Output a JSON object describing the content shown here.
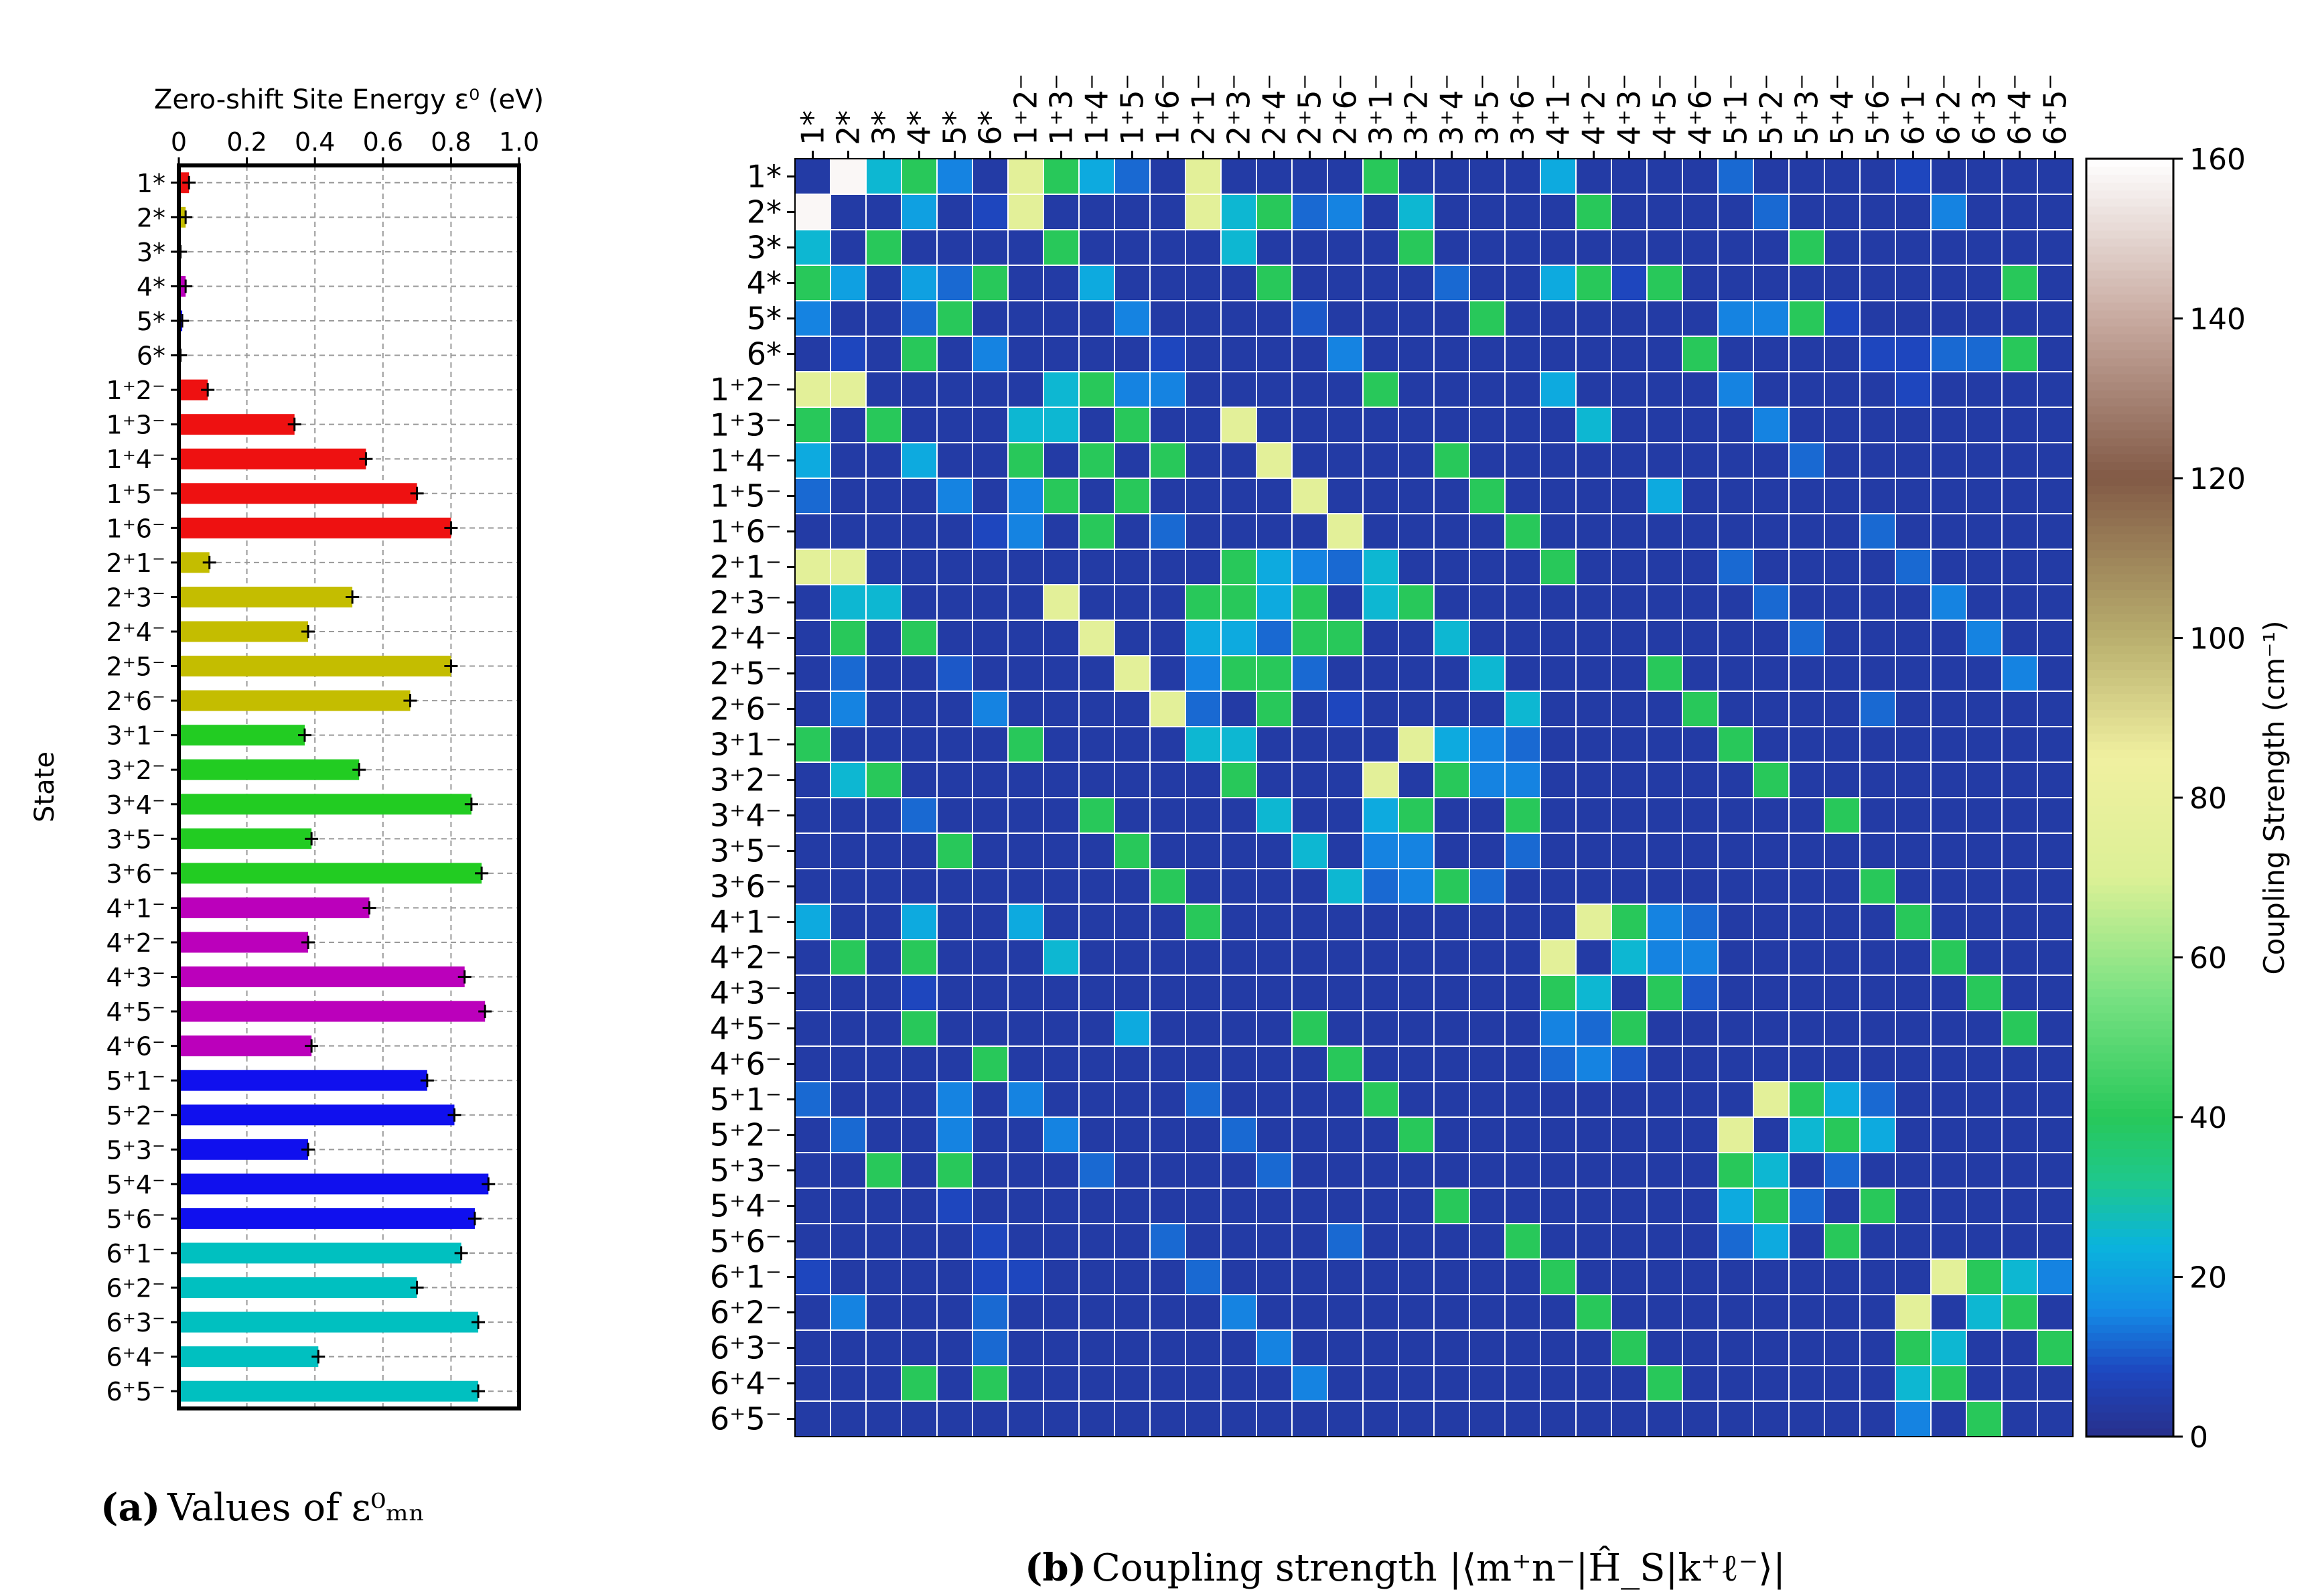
{
  "left_panel": {
    "caption_letter": "(a)",
    "caption_text": "Values of ε⁰ₘₙ"
  },
  "right_panel": {
    "caption_letter": "(b)",
    "caption_text": "Coupling strength |⟨m⁺n⁻|Ĥ_S|k⁺ℓ⁻⟩|"
  },
  "chart_data": [
    {
      "type": "bar",
      "orientation": "horizontal",
      "title": "Zero-shift Site Energy ε⁰ (eV)",
      "xlabel": "Zero-shift Site Energy ε⁰ (eV)",
      "ylabel": "State",
      "xlim": [
        0,
        1.0
      ],
      "xticks": [
        "0",
        "0.2",
        "0.4",
        "0.6",
        "0.8",
        "1.0"
      ],
      "xtick_values": [
        0,
        0.2,
        0.4,
        0.6,
        0.8,
        1.0
      ],
      "grid": true,
      "categories": [
        "1*",
        "2*",
        "3*",
        "4*",
        "5*",
        "6*",
        "1⁺2⁻",
        "1⁺3⁻",
        "1⁺4⁻",
        "1⁺5⁻",
        "1⁺6⁻",
        "2⁺1⁻",
        "2⁺3⁻",
        "2⁺4⁻",
        "2⁺5⁻",
        "2⁺6⁻",
        "3⁺1⁻",
        "3⁺2⁻",
        "3⁺4⁻",
        "3⁺5⁻",
        "3⁺6⁻",
        "4⁺1⁻",
        "4⁺2⁻",
        "4⁺3⁻",
        "4⁺5⁻",
        "4⁺6⁻",
        "5⁺1⁻",
        "5⁺2⁻",
        "5⁺3⁻",
        "5⁺4⁻",
        "5⁺6⁻",
        "6⁺1⁻",
        "6⁺2⁻",
        "6⁺3⁻",
        "6⁺4⁻",
        "6⁺5⁻"
      ],
      "values": [
        0.03,
        0.02,
        0.005,
        0.02,
        0.01,
        0.005,
        0.085,
        0.34,
        0.55,
        0.7,
        0.8,
        0.09,
        0.51,
        0.38,
        0.8,
        0.68,
        0.37,
        0.53,
        0.86,
        0.39,
        0.89,
        0.56,
        0.38,
        0.84,
        0.9,
        0.39,
        0.73,
        0.81,
        0.38,
        0.91,
        0.87,
        0.83,
        0.7,
        0.88,
        0.41,
        0.88
      ],
      "colors": [
        "#ee1111",
        "#c4bd00",
        "#22cc22",
        "#bb00bb",
        "#1010ee",
        "#00c0c0"
      ],
      "error_bars": true
    },
    {
      "type": "heatmap",
      "title": "Coupling strength",
      "colorbar_label": "Coupling Strength (cm⁻¹)",
      "colorbar_ticks": [
        "0",
        "20",
        "40",
        "60",
        "80",
        "100",
        "120",
        "140",
        "160"
      ],
      "colorbar_tick_values": [
        0,
        20,
        40,
        60,
        80,
        100,
        120,
        140,
        160
      ],
      "vmin": 0,
      "vmax": 160,
      "colormap": "gist_earth-like",
      "row_labels": [
        "1*",
        "2*",
        "3*",
        "4*",
        "5*",
        "6*",
        "1⁺2⁻",
        "1⁺3⁻",
        "1⁺4⁻",
        "1⁺5⁻",
        "1⁺6⁻",
        "2⁺1⁻",
        "2⁺3⁻",
        "2⁺4⁻",
        "2⁺5⁻",
        "2⁺6⁻",
        "3⁺1⁻",
        "3⁺2⁻",
        "3⁺4⁻",
        "3⁺5⁻",
        "3⁺6⁻",
        "4⁺1⁻",
        "4⁺2⁻",
        "4⁺3⁻",
        "4⁺5⁻",
        "4⁺6⁻",
        "5⁺1⁻",
        "5⁺2⁻",
        "5⁺3⁻",
        "5⁺4⁻",
        "5⁺6⁻",
        "6⁺1⁻",
        "6⁺2⁻",
        "6⁺3⁻",
        "6⁺4⁻",
        "6⁺5⁻"
      ],
      "col_labels": [
        "1*",
        "2*",
        "3*",
        "4*",
        "5*",
        "6*",
        "1⁺2⁻",
        "1⁺3⁻",
        "1⁺4⁻",
        "1⁺5⁻",
        "1⁺6⁻",
        "2⁺1⁻",
        "2⁺3⁻",
        "2⁺4⁻",
        "2⁺5⁻",
        "2⁺6⁻",
        "3⁺1⁻",
        "3⁺2⁻",
        "3⁺4⁻",
        "3⁺5⁻",
        "3⁺6⁻",
        "4⁺1⁻",
        "4⁺2⁻",
        "4⁺3⁻",
        "4⁺5⁻",
        "4⁺6⁻",
        "5⁺1⁻",
        "5⁺2⁻",
        "5⁺3⁻",
        "5⁺4⁻",
        "5⁺6⁻",
        "6⁺1⁻",
        "6⁺2⁻",
        "6⁺3⁻",
        "6⁺4⁻",
        "6⁺5⁻"
      ],
      "default_value": 4,
      "entries": [
        [
          0,
          1,
          158
        ],
        [
          0,
          2,
          25
        ],
        [
          0,
          3,
          40
        ],
        [
          0,
          4,
          15
        ],
        [
          0,
          6,
          75
        ],
        [
          0,
          7,
          40
        ],
        [
          0,
          8,
          22
        ],
        [
          0,
          9,
          12
        ],
        [
          0,
          11,
          75
        ],
        [
          0,
          16,
          40
        ],
        [
          0,
          21,
          22
        ],
        [
          0,
          26,
          12
        ],
        [
          0,
          31,
          8
        ],
        [
          1,
          3,
          20
        ],
        [
          1,
          5,
          8
        ],
        [
          1,
          6,
          75
        ],
        [
          1,
          11,
          75
        ],
        [
          1,
          12,
          25
        ],
        [
          1,
          13,
          40
        ],
        [
          1,
          14,
          12
        ],
        [
          1,
          15,
          15
        ],
        [
          1,
          17,
          25
        ],
        [
          1,
          22,
          40
        ],
        [
          1,
          27,
          12
        ],
        [
          1,
          32,
          15
        ],
        [
          2,
          2,
          40
        ],
        [
          2,
          7,
          40
        ],
        [
          2,
          12,
          25
        ],
        [
          2,
          17,
          40
        ],
        [
          2,
          28,
          40
        ],
        [
          3,
          3,
          20
        ],
        [
          3,
          4,
          12
        ],
        [
          3,
          5,
          40
        ],
        [
          3,
          8,
          22
        ],
        [
          3,
          13,
          40
        ],
        [
          3,
          18,
          12
        ],
        [
          3,
          21,
          22
        ],
        [
          3,
          22,
          40
        ],
        [
          3,
          23,
          8
        ],
        [
          3,
          24,
          40
        ],
        [
          3,
          34,
          40
        ],
        [
          4,
          4,
          40
        ],
        [
          4,
          9,
          15
        ],
        [
          4,
          14,
          10
        ],
        [
          4,
          19,
          40
        ],
        [
          4,
          26,
          15
        ],
        [
          4,
          27,
          15
        ],
        [
          4,
          28,
          40
        ],
        [
          4,
          29,
          8
        ],
        [
          5,
          5,
          15
        ],
        [
          5,
          10,
          8
        ],
        [
          5,
          15,
          15
        ],
        [
          5,
          25,
          40
        ],
        [
          5,
          30,
          8
        ],
        [
          5,
          31,
          8
        ],
        [
          5,
          32,
          12
        ],
        [
          5,
          33,
          12
        ],
        [
          5,
          34,
          40
        ],
        [
          6,
          7,
          25
        ],
        [
          6,
          8,
          40
        ],
        [
          6,
          9,
          15
        ],
        [
          6,
          10,
          15
        ],
        [
          6,
          16,
          40
        ],
        [
          6,
          21,
          22
        ],
        [
          6,
          26,
          15
        ],
        [
          6,
          31,
          8
        ],
        [
          7,
          7,
          25
        ],
        [
          7,
          9,
          40
        ],
        [
          7,
          12,
          75
        ],
        [
          7,
          22,
          25
        ],
        [
          7,
          27,
          15
        ],
        [
          8,
          8,
          40
        ],
        [
          8,
          10,
          40
        ],
        [
          8,
          13,
          75
        ],
        [
          8,
          18,
          40
        ],
        [
          8,
          28,
          12
        ],
        [
          9,
          9,
          40
        ],
        [
          9,
          14,
          75
        ],
        [
          9,
          19,
          40
        ],
        [
          9,
          24,
          22
        ],
        [
          10,
          10,
          12
        ],
        [
          10,
          15,
          75
        ],
        [
          10,
          20,
          40
        ],
        [
          10,
          30,
          12
        ],
        [
          11,
          12,
          40
        ],
        [
          11,
          13,
          22
        ],
        [
          11,
          14,
          15
        ],
        [
          11,
          15,
          12
        ],
        [
          11,
          16,
          25
        ],
        [
          11,
          21,
          40
        ],
        [
          11,
          26,
          12
        ],
        [
          11,
          31,
          12
        ],
        [
          12,
          12,
          40
        ],
        [
          12,
          14,
          40
        ],
        [
          12,
          17,
          40
        ],
        [
          12,
          27,
          12
        ],
        [
          12,
          32,
          15
        ],
        [
          13,
          12,
          22
        ],
        [
          13,
          13,
          12
        ],
        [
          13,
          15,
          40
        ],
        [
          13,
          18,
          25
        ],
        [
          13,
          28,
          12
        ],
        [
          13,
          33,
          15
        ],
        [
          14,
          13,
          40
        ],
        [
          14,
          14,
          12
        ],
        [
          14,
          19,
          25
        ],
        [
          14,
          24,
          40
        ],
        [
          14,
          34,
          15
        ],
        [
          15,
          15,
          8
        ],
        [
          15,
          20,
          25
        ],
        [
          15,
          25,
          40
        ],
        [
          15,
          30,
          12
        ],
        [
          16,
          12,
          25
        ],
        [
          16,
          17,
          75
        ],
        [
          16,
          18,
          22
        ],
        [
          16,
          19,
          15
        ],
        [
          16,
          20,
          12
        ],
        [
          16,
          26,
          40
        ],
        [
          17,
          16,
          75
        ],
        [
          17,
          18,
          40
        ],
        [
          17,
          19,
          15
        ],
        [
          17,
          20,
          15
        ],
        [
          17,
          27,
          40
        ],
        [
          18,
          16,
          22
        ],
        [
          18,
          17,
          40
        ],
        [
          18,
          20,
          40
        ],
        [
          18,
          29,
          40
        ],
        [
          19,
          16,
          15
        ],
        [
          19,
          17,
          15
        ],
        [
          19,
          20,
          12
        ],
        [
          20,
          16,
          12
        ],
        [
          20,
          17,
          15
        ],
        [
          20,
          18,
          40
        ],
        [
          20,
          19,
          12
        ],
        [
          20,
          30,
          40
        ],
        [
          21,
          22,
          75
        ],
        [
          21,
          23,
          40
        ],
        [
          21,
          24,
          15
        ],
        [
          21,
          25,
          12
        ],
        [
          21,
          31,
          40
        ],
        [
          22,
          21,
          75
        ],
        [
          22,
          23,
          22
        ],
        [
          22,
          24,
          15
        ],
        [
          22,
          25,
          15
        ],
        [
          22,
          32,
          40
        ],
        [
          23,
          21,
          40
        ],
        [
          23,
          22,
          25
        ],
        [
          23,
          24,
          40
        ],
        [
          23,
          33,
          40
        ],
        [
          24,
          21,
          15
        ],
        [
          24,
          22,
          12
        ],
        [
          24,
          23,
          40
        ],
        [
          24,
          34,
          40
        ],
        [
          25,
          21,
          12
        ],
        [
          25,
          22,
          15
        ],
        [
          25,
          23,
          10
        ],
        [
          26,
          27,
          75
        ],
        [
          26,
          28,
          40
        ],
        [
          26,
          29,
          22
        ],
        [
          26,
          30,
          12
        ],
        [
          27,
          26,
          75
        ],
        [
          27,
          28,
          25
        ],
        [
          27,
          29,
          40
        ],
        [
          27,
          30,
          15
        ],
        [
          28,
          26,
          40
        ],
        [
          28,
          27,
          25
        ],
        [
          28,
          29,
          12
        ],
        [
          29,
          26,
          22
        ],
        [
          29,
          27,
          40
        ],
        [
          29,
          30,
          40
        ],
        [
          30,
          26,
          12
        ],
        [
          30,
          27,
          22
        ],
        [
          30,
          29,
          40
        ],
        [
          31,
          32,
          75
        ],
        [
          31,
          33,
          40
        ],
        [
          31,
          34,
          25
        ],
        [
          31,
          35,
          15
        ],
        [
          32,
          31,
          75
        ],
        [
          32,
          33,
          25
        ],
        [
          32,
          34,
          40
        ],
        [
          33,
          31,
          40
        ],
        [
          33,
          32,
          25
        ],
        [
          33,
          35,
          40
        ],
        [
          34,
          31,
          25
        ],
        [
          34,
          32,
          40
        ],
        [
          35,
          31,
          15
        ],
        [
          35,
          33,
          40
        ]
      ]
    }
  ]
}
